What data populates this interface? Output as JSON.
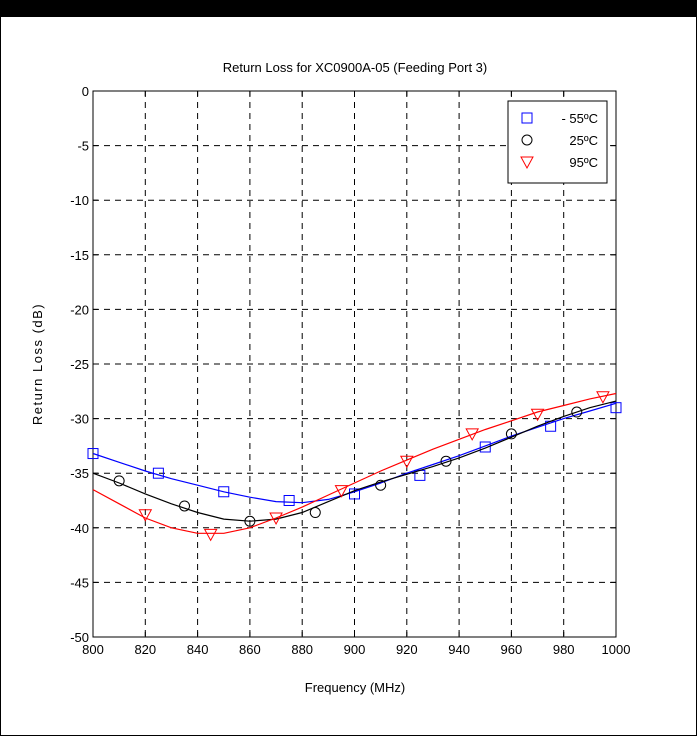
{
  "chart_data": {
    "type": "line",
    "title": "Return Loss for XC0900A-05 (Feeding Port 3)",
    "xlabel": "Frequency (MHz)",
    "ylabel": "Return Loss (dB)",
    "xlim": [
      800,
      1000
    ],
    "ylim": [
      -50,
      0
    ],
    "xticks": [
      800,
      820,
      840,
      860,
      880,
      900,
      920,
      940,
      960,
      980,
      1000
    ],
    "yticks": [
      0,
      -5,
      -10,
      -15,
      -20,
      -25,
      -30,
      -35,
      -40,
      -45,
      -50
    ],
    "grid": true,
    "legend_position": "top-right",
    "series": [
      {
        "name": "- 55ºC",
        "color": "#0000ff",
        "marker": "square",
        "line_x": [
          800,
          810,
          820,
          830,
          840,
          850,
          860,
          870,
          880,
          890,
          900,
          910,
          920,
          930,
          940,
          950,
          960,
          970,
          980,
          990,
          1000
        ],
        "line_y": [
          -33.2,
          -34.0,
          -34.8,
          -35.5,
          -36.1,
          -36.7,
          -37.2,
          -37.6,
          -37.7,
          -37.4,
          -36.7,
          -35.9,
          -35.0,
          -34.2,
          -33.4,
          -32.5,
          -31.6,
          -30.8,
          -30.0,
          -29.3,
          -28.6
        ],
        "marker_x": [
          800,
          825,
          850,
          875,
          900,
          925,
          950,
          975,
          1000
        ],
        "marker_y": [
          -33.2,
          -35.0,
          -36.7,
          -37.5,
          -36.9,
          -35.2,
          -32.6,
          -30.7,
          -29.0
        ]
      },
      {
        "name": "25ºC",
        "color": "#000000",
        "marker": "circle",
        "line_x": [
          800,
          810,
          820,
          830,
          840,
          850,
          860,
          870,
          880,
          890,
          900,
          910,
          920,
          930,
          940,
          950,
          960,
          970,
          980,
          990,
          1000
        ],
        "line_y": [
          -35.0,
          -35.9,
          -36.9,
          -37.8,
          -38.6,
          -39.2,
          -39.4,
          -39.2,
          -38.6,
          -37.6,
          -36.6,
          -35.8,
          -35.1,
          -34.4,
          -33.6,
          -32.7,
          -31.7,
          -30.7,
          -29.8,
          -29.0,
          -28.4
        ],
        "marker_x": [
          810,
          835,
          860,
          885,
          910,
          935,
          960,
          985
        ],
        "marker_y": [
          -35.7,
          -38.0,
          -39.4,
          -38.6,
          -36.1,
          -33.9,
          -31.4,
          -29.4
        ]
      },
      {
        "name": "95ºC",
        "color": "#ff0000",
        "marker": "triangle-down",
        "line_x": [
          800,
          810,
          820,
          830,
          840,
          850,
          860,
          870,
          880,
          890,
          900,
          910,
          920,
          930,
          940,
          950,
          960,
          970,
          980,
          990,
          1000
        ],
        "line_y": [
          -36.5,
          -37.8,
          -39.1,
          -40.0,
          -40.5,
          -40.5,
          -40.0,
          -39.1,
          -38.1,
          -37.0,
          -35.9,
          -34.8,
          -33.8,
          -32.8,
          -31.9,
          -31.0,
          -30.2,
          -29.4,
          -28.8,
          -28.2,
          -27.7
        ],
        "marker_x": [
          820,
          845,
          870,
          895,
          920,
          945,
          970,
          995
        ],
        "marker_y": [
          -38.8,
          -40.6,
          -39.1,
          -36.6,
          -33.9,
          -31.4,
          -29.6,
          -28.0
        ]
      }
    ]
  }
}
